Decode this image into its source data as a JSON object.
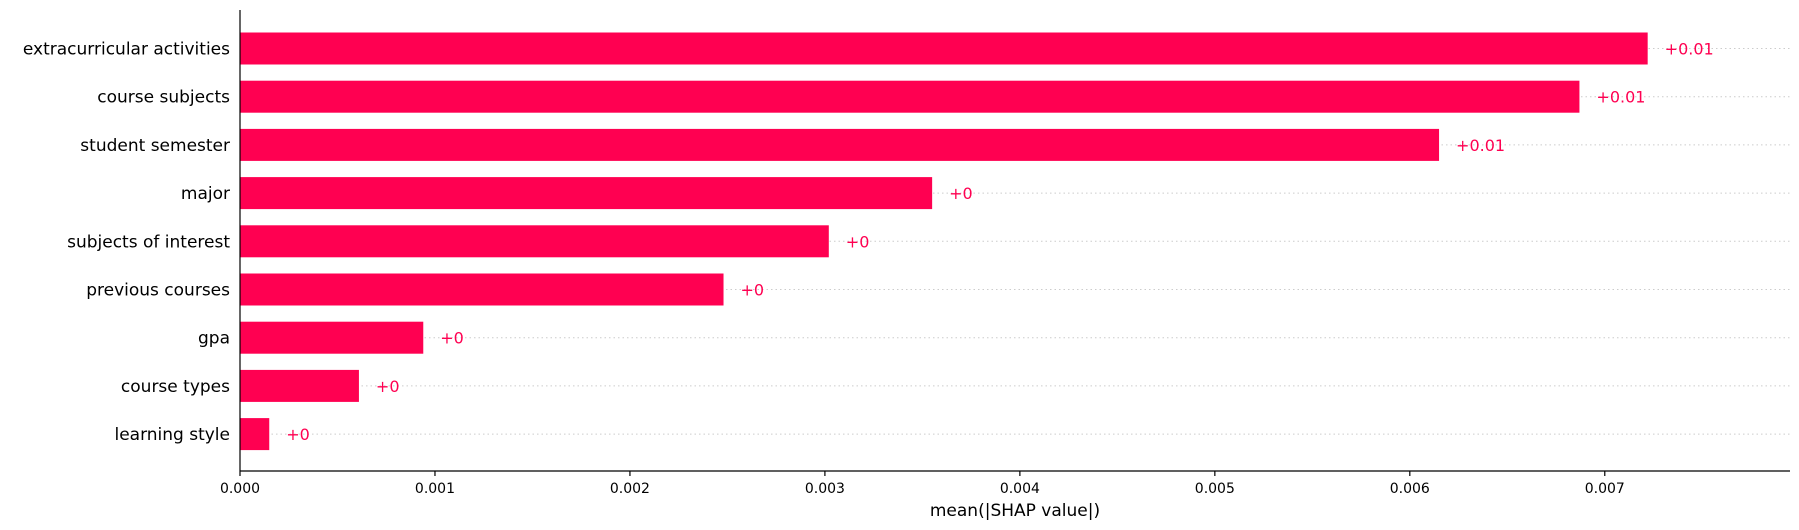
{
  "chart_data": {
    "type": "bar",
    "orientation": "horizontal",
    "categories": [
      "extracurricular activities",
      "course subjects",
      "student semester",
      "major",
      "subjects of interest",
      "previous courses",
      "gpa",
      "course types",
      "learning style"
    ],
    "values": [
      0.00722,
      0.00687,
      0.00615,
      0.00355,
      0.00302,
      0.00248,
      0.00094,
      0.00061,
      0.00015
    ],
    "value_labels": [
      "+0.01",
      "+0.01",
      "+0.01",
      "+0",
      "+0",
      "+0",
      "+0",
      "+0",
      "+0"
    ],
    "xlabel": "mean(|SHAP value|)",
    "xlim": [
      0,
      0.00795
    ],
    "xticks": [
      0,
      0.001,
      0.002,
      0.003,
      0.004,
      0.005,
      0.006,
      0.007
    ],
    "xtick_labels": [
      "0.000",
      "0.001",
      "0.002",
      "0.003",
      "0.004",
      "0.005",
      "0.006",
      "0.007"
    ],
    "bar_color": "#ff0051",
    "label_color": "#ff0051",
    "gridlines": "horizontal dotted"
  }
}
